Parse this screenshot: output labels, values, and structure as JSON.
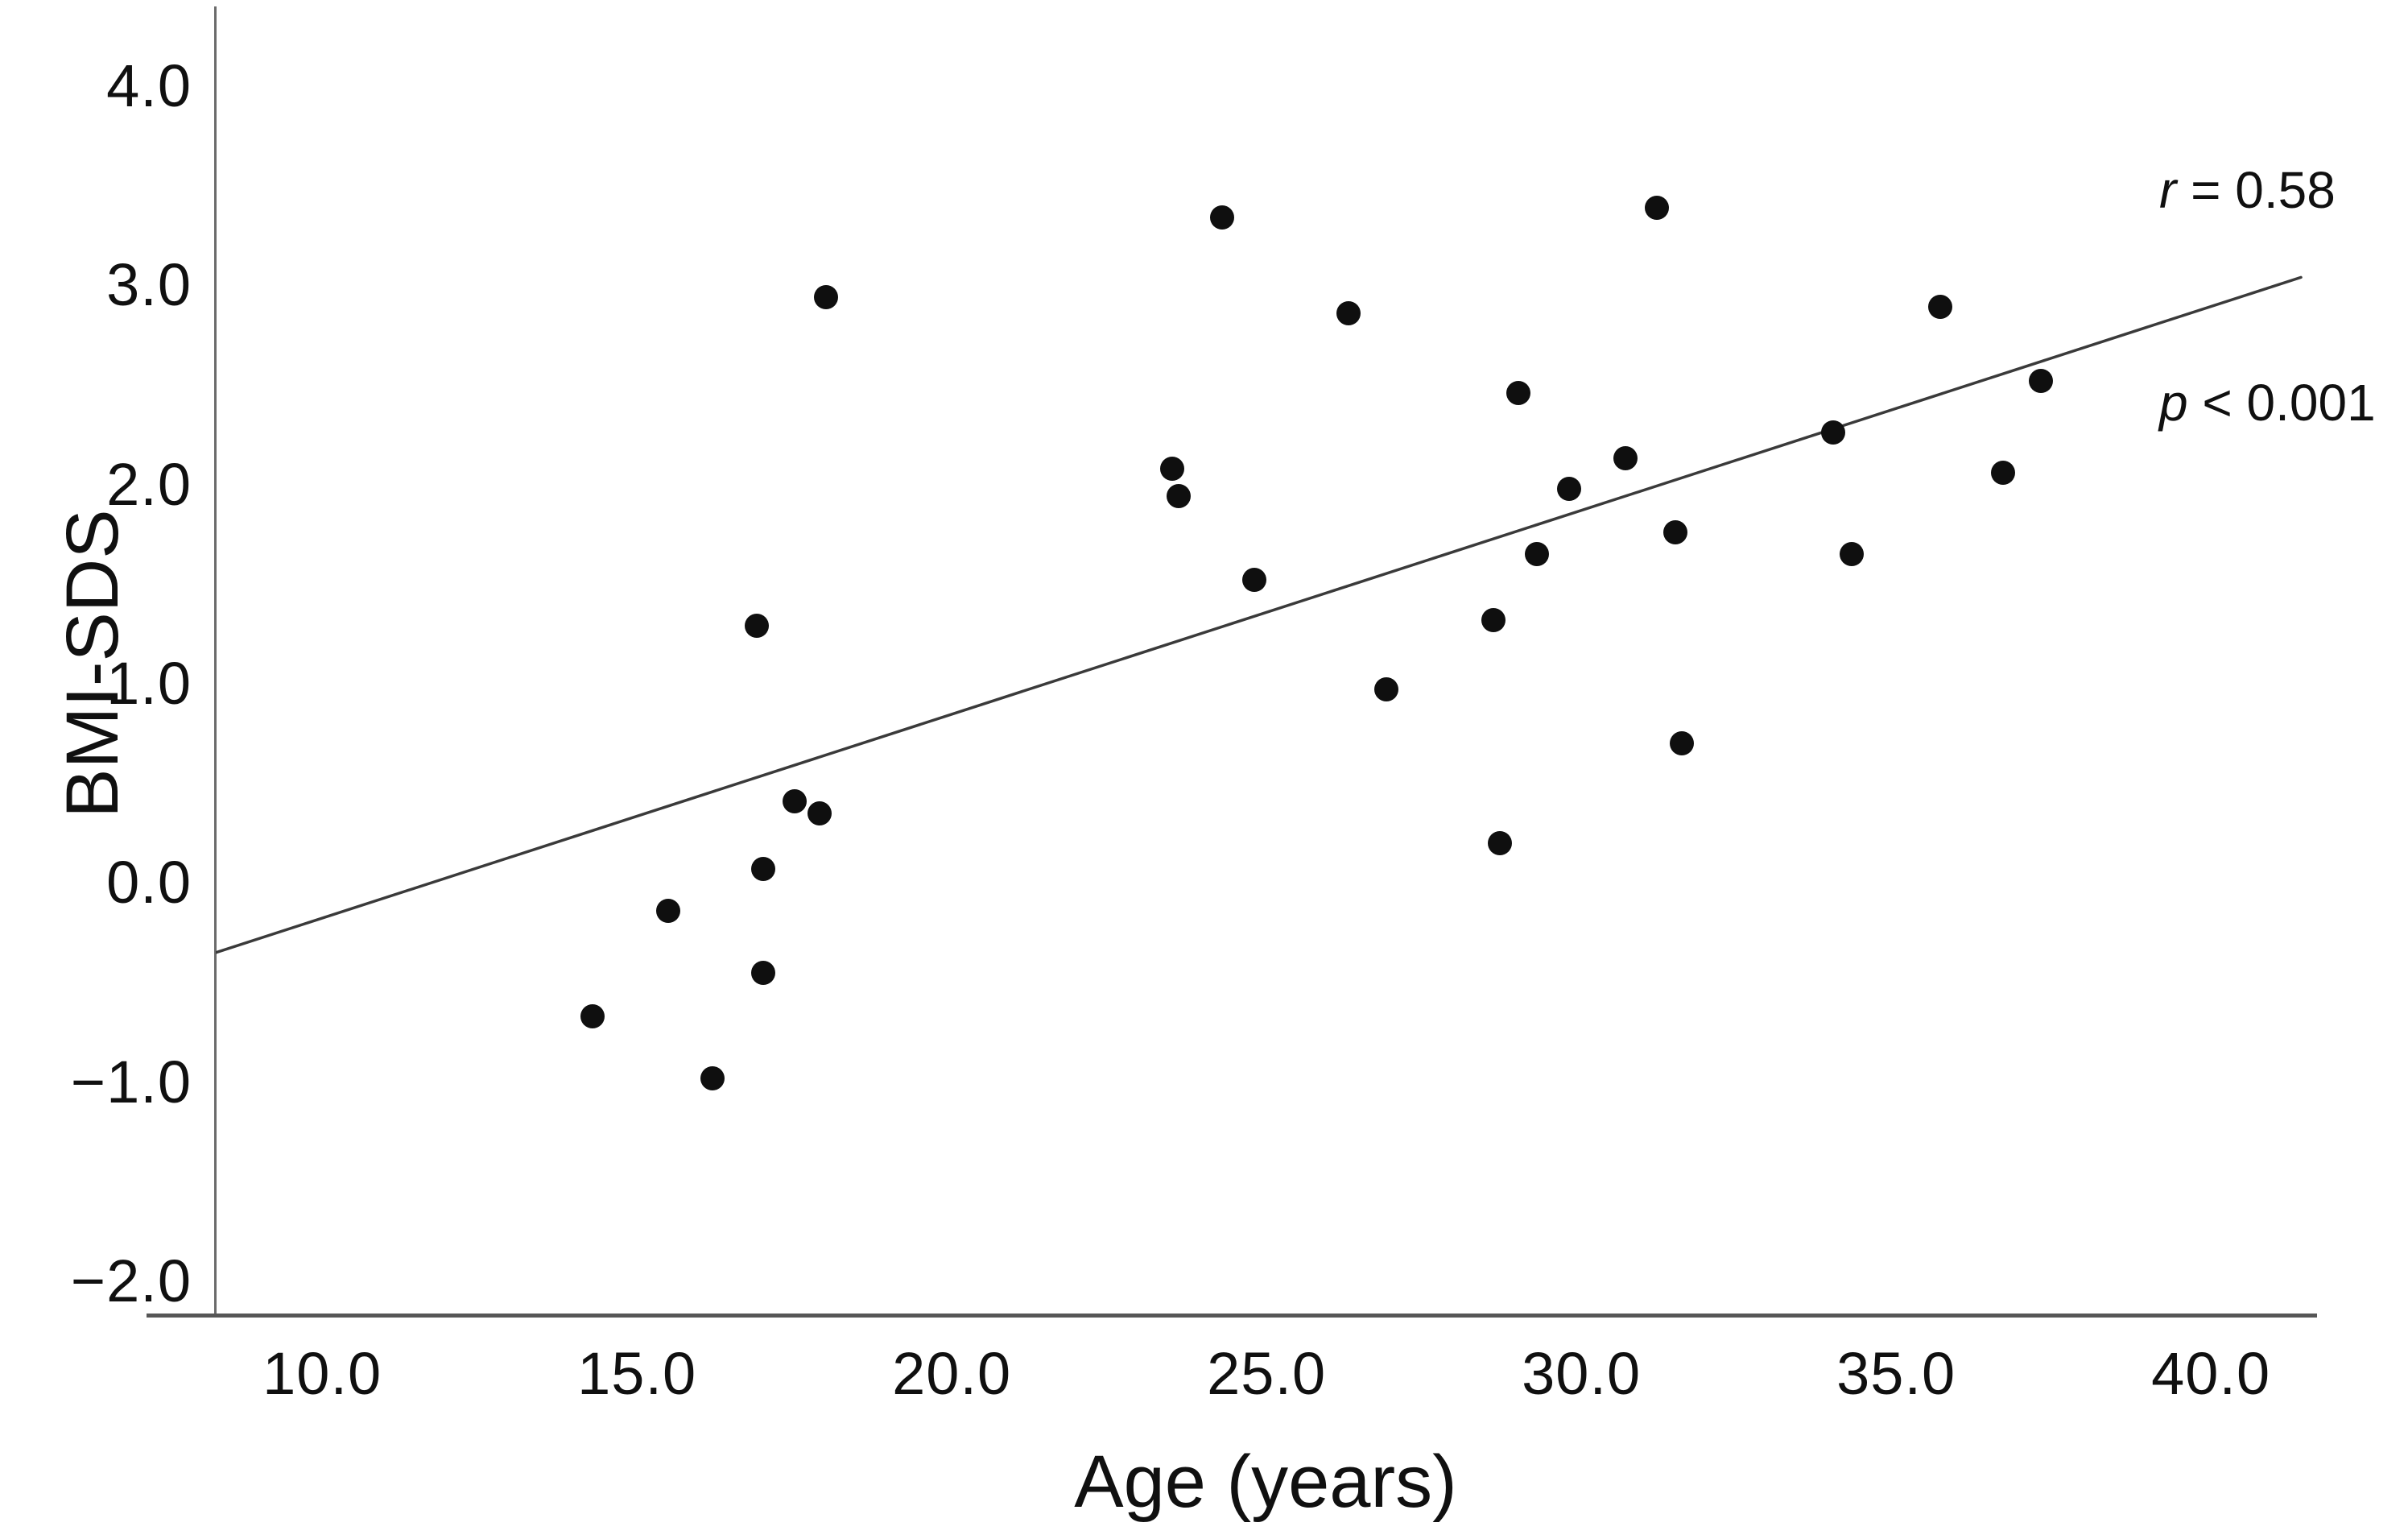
{
  "chart_data": {
    "type": "scatter",
    "title": "",
    "xlabel": "Age (years)",
    "ylabel": "BMI-SDS",
    "grid": false,
    "legend": null,
    "xlim": [
      8.31,
      41.66
    ],
    "ylim": [
      -2.17,
      4.4
    ],
    "x_ticks": [
      {
        "value": 10.0,
        "label": "10.0"
      },
      {
        "value": 15.0,
        "label": "15.0"
      },
      {
        "value": 20.0,
        "label": "20.0"
      },
      {
        "value": 25.0,
        "label": "25.0"
      },
      {
        "value": 30.0,
        "label": "30.0"
      },
      {
        "value": 35.0,
        "label": "35.0"
      },
      {
        "value": 40.0,
        "label": "40.0"
      }
    ],
    "y_ticks": [
      {
        "value": 4.0,
        "label": "4.0"
      },
      {
        "value": 3.0,
        "label": "3.0"
      },
      {
        "value": 2.0,
        "label": "2.0"
      },
      {
        "value": 1.0,
        "label": "1.0"
      },
      {
        "value": 0.0,
        "label": "0.0"
      },
      {
        "value": -1.0,
        "label": "−1.0"
      },
      {
        "value": -2.0,
        "label": "−2.0"
      }
    ],
    "points": [
      [
        14.3,
        -0.67
      ],
      [
        15.5,
        -0.14
      ],
      [
        16.2,
        -0.98
      ],
      [
        16.9,
        1.29
      ],
      [
        17.0,
        0.07
      ],
      [
        17.0,
        -0.45
      ],
      [
        17.5,
        0.41
      ],
      [
        17.9,
        0.35
      ],
      [
        18.0,
        2.94
      ],
      [
        23.5,
        2.08
      ],
      [
        23.6,
        1.94
      ],
      [
        24.3,
        3.34
      ],
      [
        24.8,
        1.52
      ],
      [
        26.3,
        2.86
      ],
      [
        26.9,
        0.97
      ],
      [
        28.6,
        1.32
      ],
      [
        28.7,
        0.2
      ],
      [
        29.0,
        2.46
      ],
      [
        29.3,
        1.65
      ],
      [
        29.8,
        1.98
      ],
      [
        30.7,
        2.13
      ],
      [
        31.2,
        3.39
      ],
      [
        31.5,
        1.76
      ],
      [
        31.6,
        0.7
      ],
      [
        34.0,
        2.26
      ],
      [
        34.3,
        1.65
      ],
      [
        35.7,
        2.89
      ],
      [
        36.7,
        2.06
      ],
      [
        37.3,
        2.52
      ]
    ],
    "trendline": {
      "x1": 8.31,
      "y1": -0.35,
      "x2": 41.43,
      "y2": 3.04
    },
    "annotation": {
      "lines": [
        {
          "symbol": "r",
          "rest": " = 0.58"
        },
        {
          "symbol": "p",
          "rest": " < 0.001"
        }
      ]
    }
  },
  "style": {
    "dot_color": "#0f0f0f",
    "trend_color": "#3a3a3a",
    "axis_color": "#6b6b6b",
    "text_color": "#101010",
    "background": "#ffffff"
  }
}
